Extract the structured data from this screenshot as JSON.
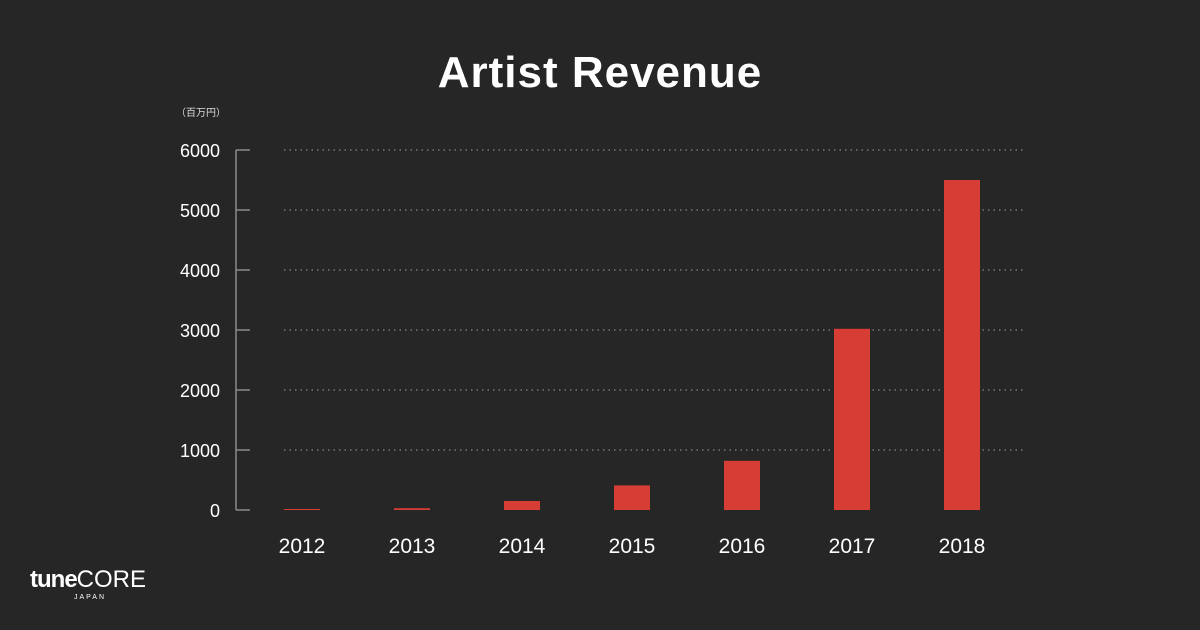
{
  "title": "Artist Revenue",
  "colors": {
    "background": "#262626",
    "bar": "#d63d34",
    "gridline": "#777777",
    "text": "#ffffff"
  },
  "logo": {
    "primary_a": "tune",
    "primary_b": "CORE",
    "secondary": "JAPAN"
  },
  "chart_data": {
    "type": "bar",
    "title": "Artist Revenue",
    "unit_label": "（百万円）",
    "categories": [
      "2012",
      "2013",
      "2014",
      "2015",
      "2016",
      "2017",
      "2018"
    ],
    "values": [
      15,
      30,
      150,
      410,
      820,
      3020,
      5500
    ],
    "ylim": [
      0,
      6000
    ],
    "yticks": [
      0,
      1000,
      2000,
      3000,
      4000,
      5000,
      6000
    ],
    "grid": "horizontal dotted",
    "legend": "none"
  }
}
